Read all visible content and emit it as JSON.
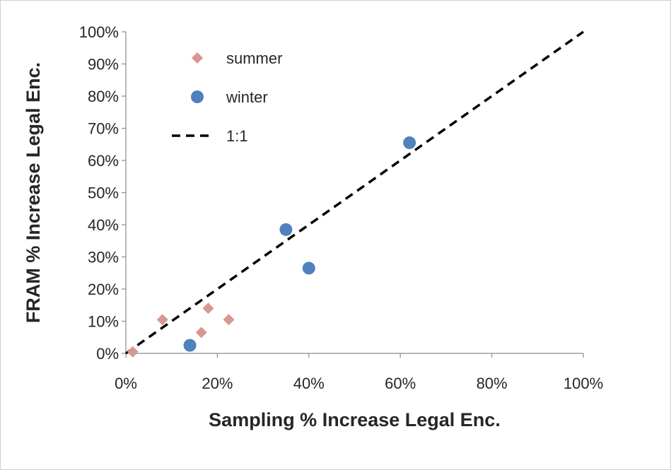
{
  "chart_data": {
    "type": "scatter",
    "xlabel": "Sampling % Increase Legal Enc.",
    "ylabel": "FRAM % Increase Legal Enc.",
    "xlim": [
      0,
      100
    ],
    "ylim": [
      0,
      100
    ],
    "x_ticks": [
      "0%",
      "20%",
      "40%",
      "60%",
      "80%",
      "100%"
    ],
    "y_ticks": [
      "0%",
      "10%",
      "20%",
      "30%",
      "40%",
      "50%",
      "60%",
      "70%",
      "80%",
      "90%",
      "100%"
    ],
    "grid": false,
    "legend_position": "top-left",
    "series": [
      {
        "name": "summer",
        "marker": "diamond",
        "color": "#d99694",
        "points": [
          [
            1.5,
            0.5
          ],
          [
            8,
            10.5
          ],
          [
            16.5,
            6.5
          ],
          [
            18,
            14
          ],
          [
            22.5,
            10.5
          ]
        ]
      },
      {
        "name": "winter",
        "marker": "circle",
        "color": "#4f81bd",
        "points": [
          [
            14,
            2.5
          ],
          [
            35,
            38.5
          ],
          [
            40,
            26.5
          ],
          [
            62,
            65.5
          ]
        ]
      },
      {
        "name": "1:1",
        "marker": "dashed-line",
        "color": "#000000",
        "points": [
          [
            0,
            0
          ],
          [
            100,
            100
          ]
        ]
      }
    ]
  }
}
